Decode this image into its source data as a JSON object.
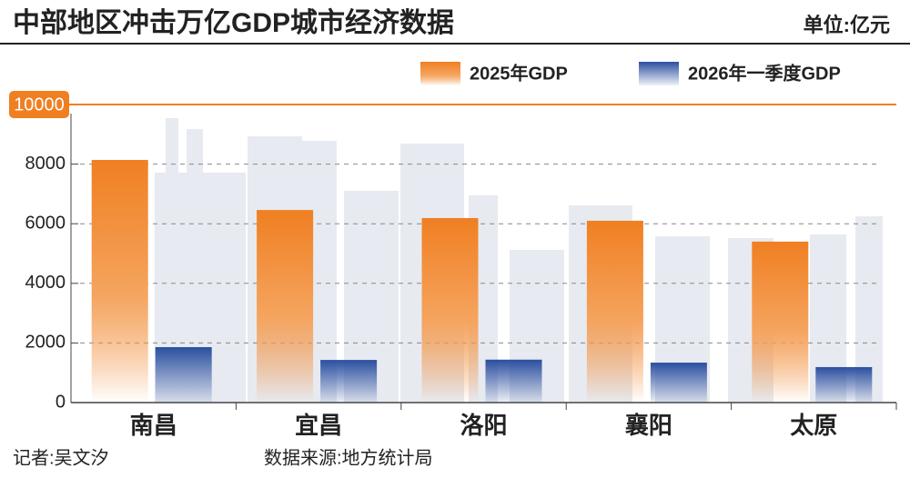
{
  "chart_data": {
    "type": "bar",
    "title": "中部地区冲击万亿GDP城市经济数据",
    "subtitle": "单位:亿元",
    "categories": [
      "南昌",
      "宜昌",
      "洛阳",
      "襄阳",
      "太原"
    ],
    "series": [
      {
        "name": "2025年GDP",
        "color": "#f07f22",
        "values": [
          8140,
          6460,
          6190,
          6100,
          5400
        ]
      },
      {
        "name": "2026年一季度GDP",
        "color": "#2b4fa0",
        "values": [
          1860,
          1430,
          1440,
          1340,
          1190
        ]
      }
    ],
    "ylim": [
      0,
      10000
    ],
    "yticks": [
      0,
      2000,
      4000,
      6000,
      8000,
      10000
    ],
    "grid": true,
    "legend": "top-right",
    "footer": {
      "author": "记者:吴文汐",
      "source": "数据来源:地方统计局"
    }
  }
}
